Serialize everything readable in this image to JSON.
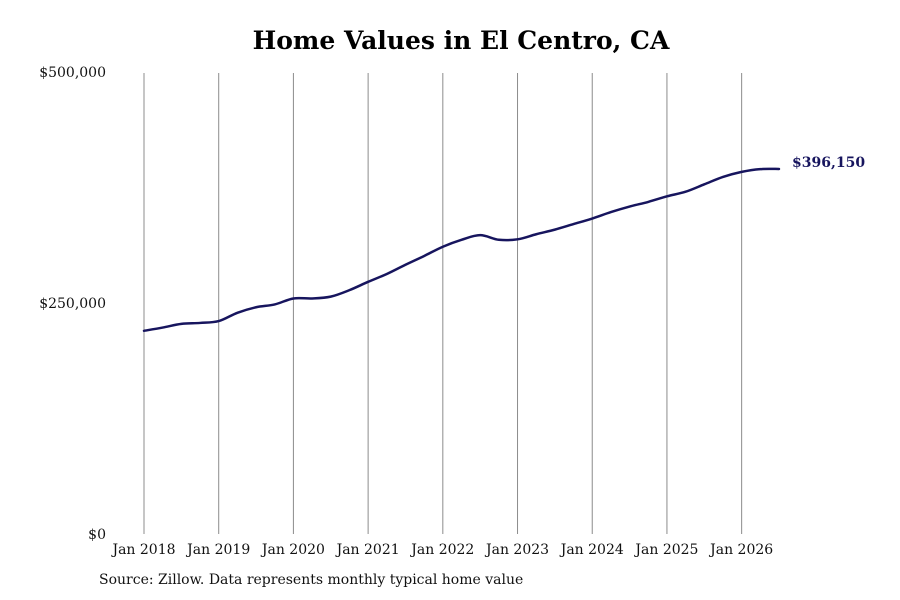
{
  "chart_data": {
    "type": "line",
    "title": "Home Values in El Centro, CA",
    "xlabel": "",
    "ylabel": "",
    "x_ticks": [
      "Jan 2018",
      "Jan 2019",
      "Jan 2020",
      "Jan 2021",
      "Jan 2022",
      "Jan 2023",
      "Jan 2024",
      "Jan 2025",
      "Jan 2026"
    ],
    "y_ticks": [
      "$0",
      "$250,000",
      "$500,000"
    ],
    "y_tick_values": [
      0,
      250000,
      500000
    ],
    "ylim": [
      0,
      500000
    ],
    "xlim": [
      "2018-01",
      "2026-07"
    ],
    "grid": "vertical lines at each January",
    "legend": "none",
    "series": [
      {
        "color": "#17155e",
        "end_label": "$396,150",
        "points": [
          [
            "2018-01",
            221000
          ],
          [
            "2018-04",
            224500
          ],
          [
            "2018-07",
            228500
          ],
          [
            "2018-10",
            229500
          ],
          [
            "2019-01",
            231500
          ],
          [
            "2019-04",
            240500
          ],
          [
            "2019-07",
            246500
          ],
          [
            "2019-10",
            249500
          ],
          [
            "2020-01",
            256000
          ],
          [
            "2020-04",
            256000
          ],
          [
            "2020-07",
            258000
          ],
          [
            "2020-10",
            265000
          ],
          [
            "2021-01",
            274000
          ],
          [
            "2021-04",
            282500
          ],
          [
            "2021-07",
            292500
          ],
          [
            "2021-10",
            302000
          ],
          [
            "2022-01",
            312000
          ],
          [
            "2022-04",
            319500
          ],
          [
            "2022-07",
            324500
          ],
          [
            "2022-10",
            319500
          ],
          [
            "2023-01",
            320000
          ],
          [
            "2023-04",
            325500
          ],
          [
            "2023-07",
            330500
          ],
          [
            "2023-10",
            336500
          ],
          [
            "2024-01",
            342500
          ],
          [
            "2024-04",
            349500
          ],
          [
            "2024-07",
            355500
          ],
          [
            "2024-10",
            360500
          ],
          [
            "2025-01",
            366500
          ],
          [
            "2025-04",
            371500
          ],
          [
            "2025-07",
            379500
          ],
          [
            "2025-10",
            387500
          ],
          [
            "2026-01",
            393000
          ],
          [
            "2026-04",
            396000
          ],
          [
            "2026-07",
            396150
          ]
        ]
      }
    ]
  },
  "source": "Source: Zillow. Data represents monthly typical home value"
}
